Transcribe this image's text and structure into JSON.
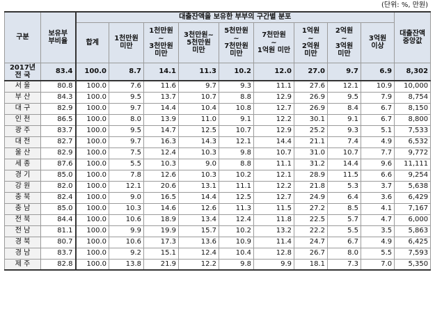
{
  "unit_note": "(단위: %, 만원)",
  "headers": {
    "region": "구분",
    "rate": "보유부\n부비율",
    "dist_group": "대출잔액을 보유한 부부의 구간별 분포",
    "median": "대출잔액\n중앙값",
    "bins": [
      "합계",
      "1천만원\n미만",
      "1천만원\n~\n3천만원\n미만",
      "3천만원~\n5천만원\n미만",
      "5천만원\n~\n7천만원\n미만",
      "7천만원\n~\n1억원 미만",
      "1억원\n~\n2억원\n미만",
      "2억원\n~\n3억원\n미만",
      "3억원\n이상"
    ]
  },
  "total_row": {
    "label": "2017년\n전 국",
    "cells": [
      "83.4",
      "100.0",
      "8.7",
      "14.1",
      "11.3",
      "10.2",
      "12.0",
      "27.0",
      "9.7",
      "6.9",
      "8,302"
    ]
  },
  "rows": [
    {
      "label": "서 울",
      "cells": [
        "80.8",
        "100.0",
        "7.6",
        "11.6",
        "9.7",
        "9.3",
        "11.1",
        "27.6",
        "12.1",
        "10.9",
        "10,000"
      ]
    },
    {
      "label": "부 산",
      "cells": [
        "84.3",
        "100.0",
        "9.5",
        "13.7",
        "10.7",
        "8.8",
        "12.9",
        "26.9",
        "9.5",
        "7.9",
        "8,754"
      ]
    },
    {
      "label": "대 구",
      "cells": [
        "82.9",
        "100.0",
        "9.7",
        "14.4",
        "10.4",
        "10.8",
        "12.7",
        "26.9",
        "8.4",
        "6.7",
        "8,150"
      ]
    },
    {
      "label": "인 천",
      "cells": [
        "86.5",
        "100.0",
        "8.0",
        "13.9",
        "11.0",
        "9.1",
        "12.2",
        "30.1",
        "9.1",
        "6.7",
        "8,800"
      ]
    },
    {
      "label": "광 주",
      "cells": [
        "83.7",
        "100.0",
        "9.5",
        "14.7",
        "12.5",
        "10.7",
        "12.9",
        "25.2",
        "9.3",
        "5.1",
        "7,533"
      ]
    },
    {
      "label": "대 전",
      "cells": [
        "82.7",
        "100.0",
        "9.7",
        "16.3",
        "14.3",
        "12.1",
        "14.4",
        "21.1",
        "7.4",
        "4.9",
        "6,532"
      ]
    },
    {
      "label": "울 산",
      "cells": [
        "82.9",
        "100.0",
        "7.5",
        "12.4",
        "10.3",
        "9.8",
        "10.7",
        "31.0",
        "10.7",
        "7.7",
        "9,772"
      ]
    },
    {
      "label": "세 종",
      "cells": [
        "87.6",
        "100.0",
        "5.5",
        "10.3",
        "9.0",
        "8.8",
        "11.1",
        "31.2",
        "14.4",
        "9.6",
        "11,111"
      ]
    },
    {
      "label": "경 기",
      "cells": [
        "85.0",
        "100.0",
        "7.8",
        "12.6",
        "10.3",
        "10.2",
        "12.1",
        "28.9",
        "11.5",
        "6.6",
        "9,254"
      ]
    },
    {
      "label": "강 원",
      "cells": [
        "82.0",
        "100.0",
        "12.1",
        "20.6",
        "13.1",
        "11.1",
        "12.2",
        "21.8",
        "5.3",
        "3.7",
        "5,638"
      ]
    },
    {
      "label": "충 북",
      "cells": [
        "82.4",
        "100.0",
        "9.0",
        "16.5",
        "14.4",
        "12.5",
        "12.7",
        "24.9",
        "6.4",
        "3.6",
        "6,429"
      ]
    },
    {
      "label": "충 남",
      "cells": [
        "85.0",
        "100.0",
        "10.3",
        "14.6",
        "12.6",
        "11.3",
        "11.5",
        "27.2",
        "8.5",
        "4.1",
        "7,167"
      ]
    },
    {
      "label": "전 북",
      "cells": [
        "84.4",
        "100.0",
        "10.6",
        "18.9",
        "13.4",
        "12.4",
        "11.8",
        "22.5",
        "5.7",
        "4.7",
        "6,000"
      ]
    },
    {
      "label": "전 남",
      "cells": [
        "81.1",
        "100.0",
        "9.9",
        "19.9",
        "15.7",
        "10.2",
        "13.2",
        "22.2",
        "5.5",
        "3.5",
        "5,863"
      ]
    },
    {
      "label": "경 북",
      "cells": [
        "80.7",
        "100.0",
        "10.6",
        "17.3",
        "13.6",
        "10.9",
        "11.4",
        "24.7",
        "6.7",
        "4.9",
        "6,425"
      ]
    },
    {
      "label": "경 남",
      "cells": [
        "83.7",
        "100.0",
        "9.2",
        "15.1",
        "12.4",
        "10.4",
        "12.8",
        "26.7",
        "8.0",
        "5.5",
        "7,593"
      ]
    },
    {
      "label": "제 주",
      "cells": [
        "82.8",
        "100.0",
        "13.8",
        "21.9",
        "12.2",
        "9.8",
        "9.9",
        "18.1",
        "7.3",
        "7.0",
        "5,350"
      ]
    }
  ]
}
